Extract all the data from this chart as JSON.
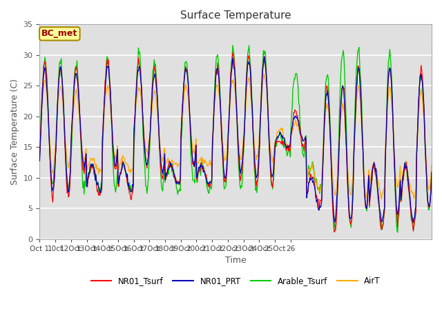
{
  "title": "Surface Temperature",
  "ylabel": "Surface Temperature (C)",
  "xlabel": "Time",
  "ylim": [
    0,
    35
  ],
  "xlim": [
    0,
    25
  ],
  "annotation": "BC_met",
  "legend_entries": [
    "NR01_Tsurf",
    "NR01_PRT",
    "Arable_Tsurf",
    "AirT"
  ],
  "line_colors": [
    "#ff0000",
    "#0000bb",
    "#00cc00",
    "#ffaa00"
  ],
  "background_color": "#e0e0e0",
  "grid_color": "#ffffff",
  "tick_positions": [
    0,
    1,
    2,
    3,
    4,
    5,
    6,
    7,
    8,
    9,
    10,
    11,
    12,
    13,
    14,
    15,
    16
  ],
  "tick_labels": [
    "Oct 1",
    "10ct",
    "12Oct",
    "13Oct",
    "14Oct",
    "15Oct",
    "16Oct",
    "17Oct",
    "18Oct",
    "19Oct",
    "200ct",
    "21Oct",
    "22Oct",
    "23Oct",
    "24Oct",
    "25Oct",
    "26"
  ],
  "yticks": [
    0,
    5,
    10,
    15,
    20,
    25,
    30,
    35
  ],
  "n_points": 600,
  "title_fontsize": 11,
  "label_fontsize": 9,
  "tick_fontsize": 7.5
}
